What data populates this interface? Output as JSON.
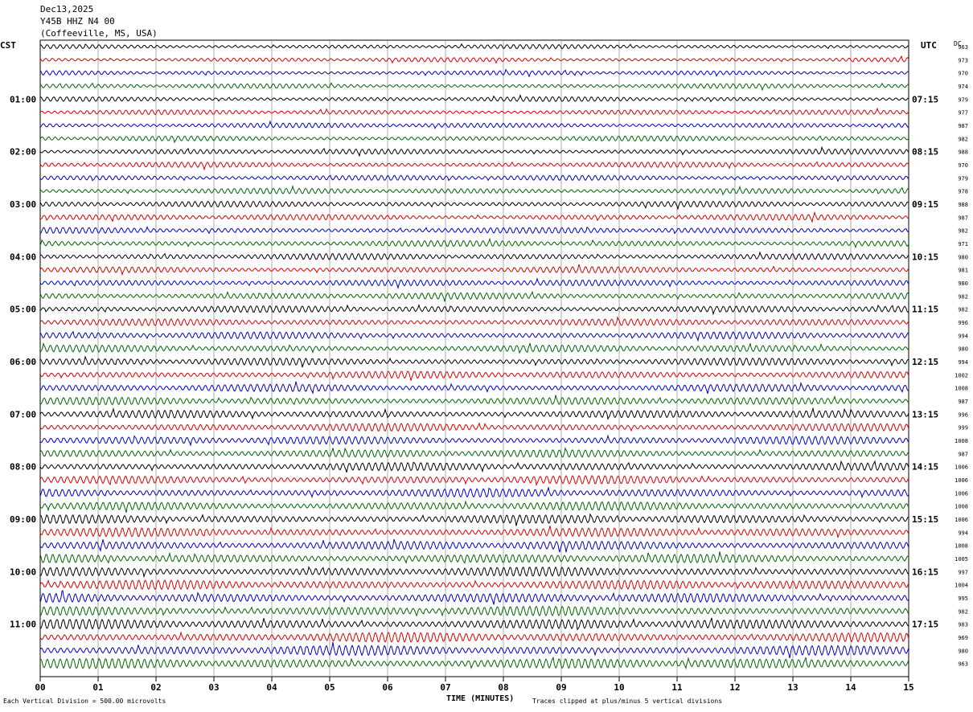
{
  "header": {
    "date": "Dec13,2025",
    "station": "Y45B HHZ N4 00",
    "location": "(Coffeeville, MS, USA)"
  },
  "left_tz": "CST",
  "right_tz": "UTC",
  "dc_title": "DC",
  "footer": {
    "vertical_division": "Each Vertical Division =   500.00 microvolts",
    "clip_note": "Traces clipped at plus/minus 5 vertical divisions"
  },
  "chart_data": {
    "type": "line",
    "title": "",
    "xlabel": "TIME (MINUTES)",
    "ylabel": "",
    "x_ticks": [
      "00",
      "01",
      "02",
      "03",
      "04",
      "05",
      "06",
      "07",
      "08",
      "09",
      "10",
      "11",
      "12",
      "13",
      "14",
      "15"
    ],
    "xlim": [
      0,
      15
    ],
    "num_traces": 48,
    "trace_colors": [
      "#000000",
      "#dd0000",
      "#0000cc",
      "#006600"
    ],
    "left_hour_labels": [
      "01:00",
      "02:00",
      "03:00",
      "04:00",
      "05:00",
      "06:00",
      "07:00",
      "08:00",
      "09:00",
      "10:00",
      "11:00"
    ],
    "right_hour_labels": [
      "07:15",
      "08:15",
      "09:15",
      "10:15",
      "11:15",
      "12:15",
      "13:15",
      "14:15",
      "15:15",
      "16:15",
      "17:15"
    ],
    "dc_values": [
      "963",
      "973",
      "970",
      "974",
      "979",
      "977",
      "987",
      "982",
      "988",
      "970",
      "979",
      "978",
      "988",
      "987",
      "982",
      "971",
      "980",
      "981",
      "980",
      "982",
      "982",
      "996",
      "994",
      "980",
      "994",
      "1002",
      "1008",
      "987",
      "996",
      "999",
      "1008",
      "987",
      "1006",
      "1006",
      "1006",
      "1008",
      "1006",
      "994",
      "1008",
      "1005",
      "997",
      "1004",
      "995",
      "982",
      "983",
      "969",
      "980",
      "963"
    ]
  }
}
